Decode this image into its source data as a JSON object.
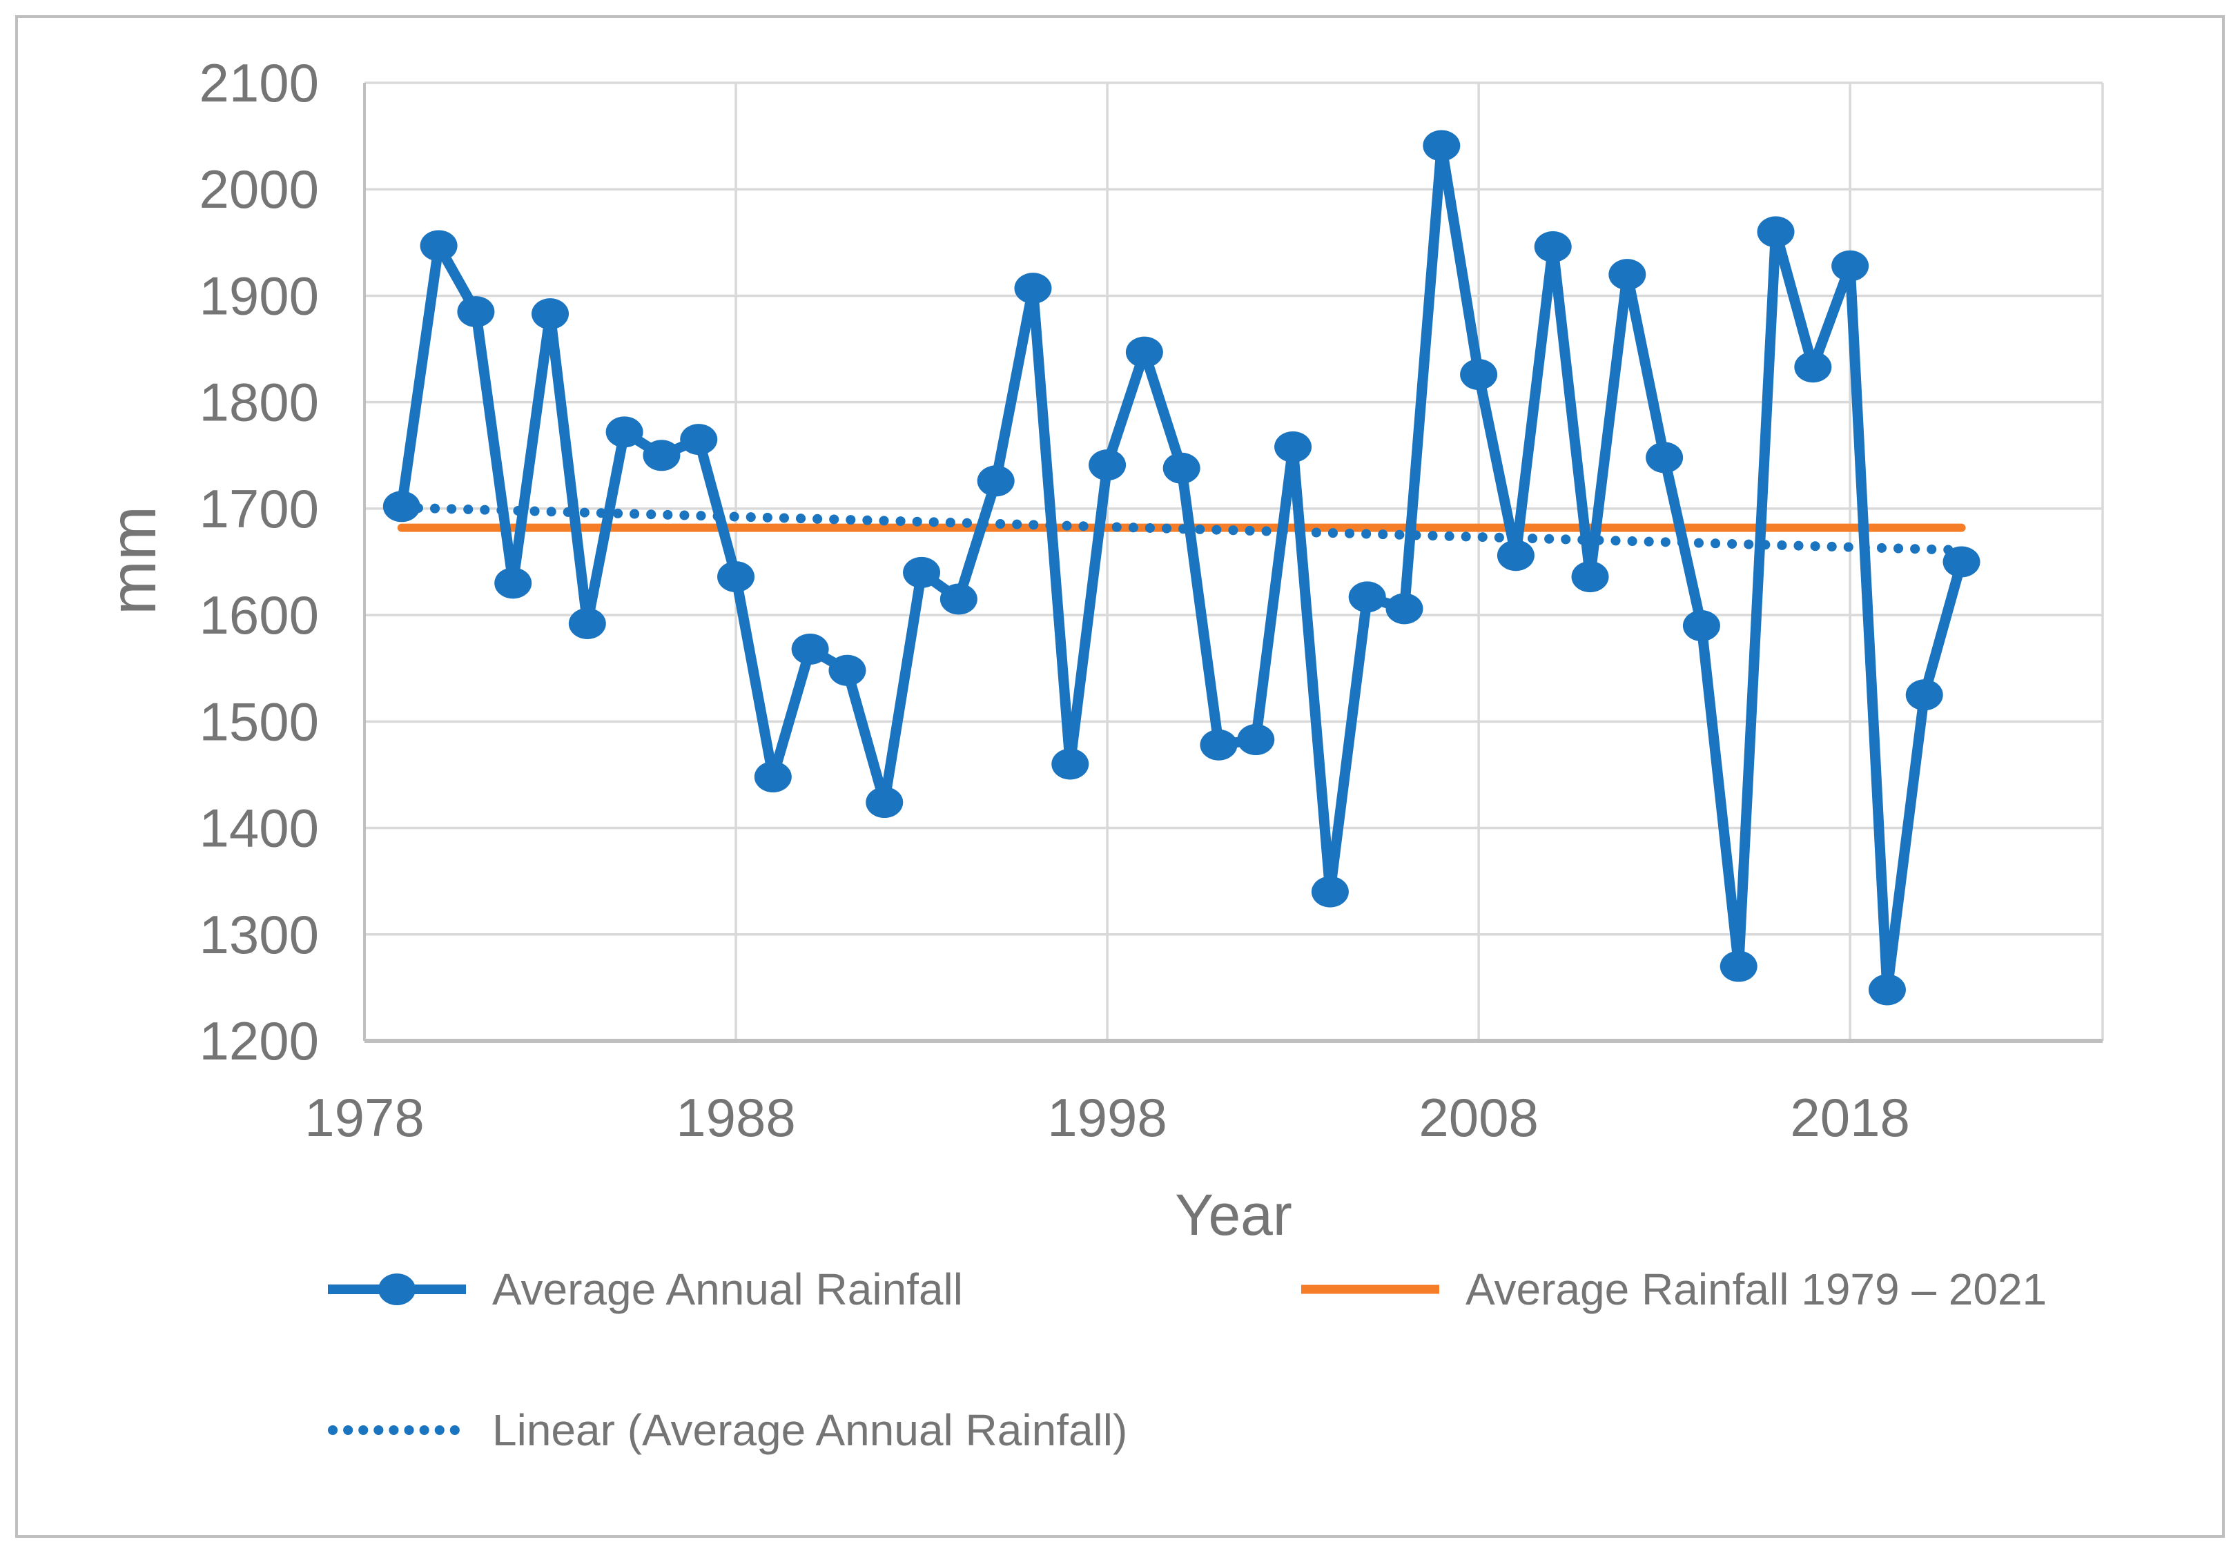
{
  "chart_data": {
    "type": "line",
    "title": "",
    "xlabel": "Year",
    "ylabel": "mm",
    "xlim": [
      1978,
      2024.8
    ],
    "ylim": [
      1200,
      2100
    ],
    "grid": true,
    "legend_position": "bottom",
    "x_ticks": [
      1978,
      1988,
      1998,
      2008,
      2018
    ],
    "x_gridlines": [
      1988,
      1998,
      2008,
      2018
    ],
    "y_ticks": [
      1200,
      1300,
      1400,
      1500,
      1600,
      1700,
      1800,
      1900,
      2000,
      2100
    ],
    "series": [
      {
        "name": "Average Annual Rainfall",
        "kind": "line-markers",
        "color": "#1B74BF",
        "x": [
          1979,
          1980,
          1981,
          1982,
          1983,
          1984,
          1985,
          1986,
          1987,
          1988,
          1989,
          1990,
          1991,
          1992,
          1993,
          1994,
          1995,
          1996,
          1997,
          1998,
          1999,
          2000,
          2001,
          2002,
          2003,
          2004,
          2005,
          2006,
          2007,
          2008,
          2009,
          2010,
          2011,
          2012,
          2013,
          2014,
          2015,
          2016,
          2017,
          2018,
          2019,
          2020,
          2021
        ],
        "values": [
          1702,
          1947,
          1885,
          1630,
          1883,
          1592,
          1772,
          1750,
          1765,
          1636,
          1448,
          1568,
          1548,
          1424,
          1640,
          1615,
          1726,
          1907,
          1460,
          1741,
          1847,
          1738,
          1478,
          1483,
          1758,
          1340,
          1617,
          1606,
          2041,
          1826,
          1656,
          1946,
          1636,
          1920,
          1748,
          1590,
          1270,
          1960,
          1833,
          1928,
          1248,
          1525,
          1650
        ]
      },
      {
        "name": "Average Rainfall 1979 – 2021",
        "kind": "horizontal-line",
        "color": "#F57D28",
        "value": 1682,
        "x_start": 1979,
        "x_end": 2021
      },
      {
        "name": "Linear (Average Annual Rainfall)",
        "kind": "dotted-trendline",
        "color": "#1B74BF",
        "start": {
          "x": 1979,
          "y": 1701
        },
        "end": {
          "x": 2021,
          "y": 1661
        }
      }
    ]
  },
  "axes": {
    "x_title": "Year",
    "y_title": "mm"
  },
  "legend": {
    "item1": "Average Annual Rainfall",
    "item2": "Average Rainfall 1979 – 2021",
    "item3": "Linear (Average Annual Rainfall)"
  },
  "colors": {
    "series_blue": "#1B74BF",
    "average_orange": "#F57D28",
    "gridline": "#D9D9D9",
    "axis_line": "#BFBFBF",
    "text_gray": "#757575",
    "border": "#BFBFBF"
  }
}
